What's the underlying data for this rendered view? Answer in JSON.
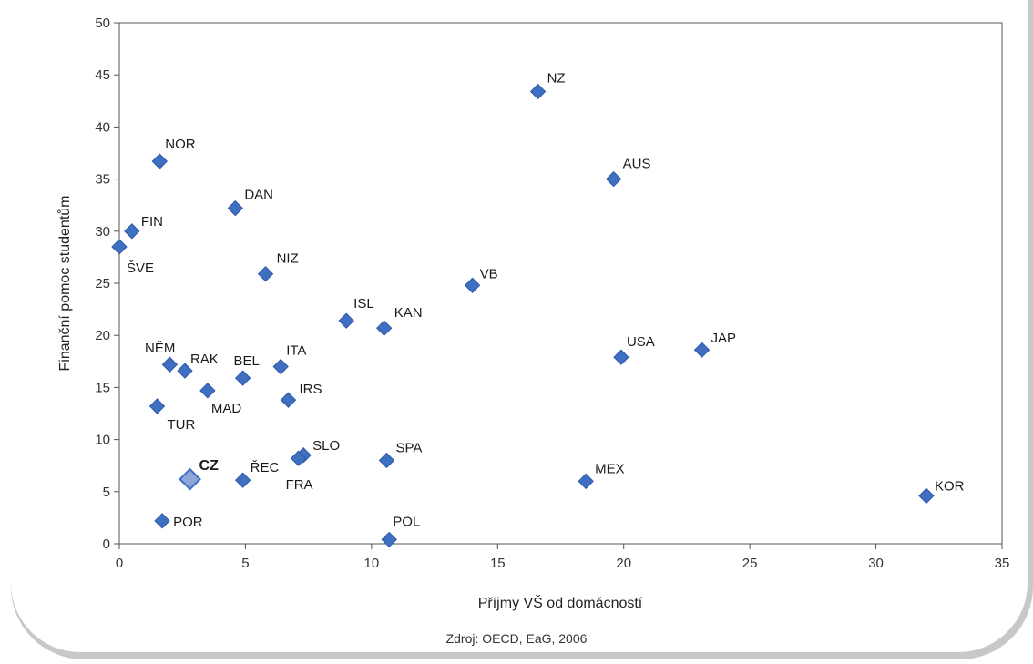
{
  "colors": {
    "marker": "#3f6fc0",
    "marker_stroke": "#2f5aa8",
    "highlight": "#8fa6d9",
    "highlight_stroke": "#3f6fc0"
  },
  "source": "Zdroj: OECD, EaG, 2006",
  "chart_data": {
    "type": "scatter",
    "title": "",
    "xlabel": "Příjmy VŠ od domácností",
    "ylabel": "Finanční pomoc studentům",
    "xlim": [
      0,
      35
    ],
    "ylim": [
      0,
      50
    ],
    "xticks": [
      0,
      5,
      10,
      15,
      20,
      25,
      30,
      35
    ],
    "yticks": [
      0,
      5,
      10,
      15,
      20,
      25,
      30,
      35,
      40,
      45,
      50
    ],
    "grid": false,
    "points": [
      {
        "label": "NZ",
        "x": 16.6,
        "y": 43.4
      },
      {
        "label": "NOR",
        "x": 1.6,
        "y": 36.7
      },
      {
        "label": "AUS",
        "x": 19.6,
        "y": 35.0
      },
      {
        "label": "DAN",
        "x": 4.6,
        "y": 32.2
      },
      {
        "label": "FIN",
        "x": 0.5,
        "y": 30.0
      },
      {
        "label": "ŠVE",
        "x": 0.0,
        "y": 28.5
      },
      {
        "label": "NIZ",
        "x": 5.8,
        "y": 25.9
      },
      {
        "label": "VB",
        "x": 14.0,
        "y": 24.8
      },
      {
        "label": "ISL",
        "x": 9.0,
        "y": 21.4
      },
      {
        "label": "KAN",
        "x": 10.5,
        "y": 20.7
      },
      {
        "label": "JAP",
        "x": 23.1,
        "y": 18.6
      },
      {
        "label": "USA",
        "x": 19.9,
        "y": 17.9
      },
      {
        "label": "NĚM",
        "x": 2.0,
        "y": 17.2
      },
      {
        "label": "ITA",
        "x": 6.4,
        "y": 17.0
      },
      {
        "label": "RAK",
        "x": 2.6,
        "y": 16.6
      },
      {
        "label": "BEL",
        "x": 4.9,
        "y": 15.9
      },
      {
        "label": "MAD",
        "x": 3.5,
        "y": 14.7
      },
      {
        "label": "IRS",
        "x": 6.7,
        "y": 13.8
      },
      {
        "label": "TUR",
        "x": 1.5,
        "y": 13.2
      },
      {
        "label": "SLO",
        "x": 7.3,
        "y": 8.5
      },
      {
        "label": "FRA",
        "x": 7.1,
        "y": 8.2
      },
      {
        "label": "SPA",
        "x": 10.6,
        "y": 8.0
      },
      {
        "label": "CZ",
        "x": 2.8,
        "y": 6.2,
        "highlight": true
      },
      {
        "label": "ŘEC",
        "x": 4.9,
        "y": 6.1
      },
      {
        "label": "MEX",
        "x": 18.5,
        "y": 6.0
      },
      {
        "label": "KOR",
        "x": 32.0,
        "y": 4.6
      },
      {
        "label": "POR",
        "x": 1.7,
        "y": 2.2
      },
      {
        "label": "POL",
        "x": 10.7,
        "y": 0.4
      }
    ]
  }
}
